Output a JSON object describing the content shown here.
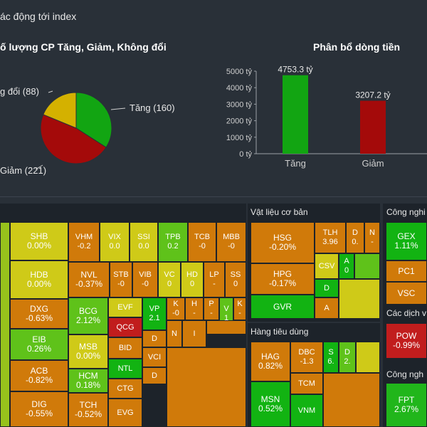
{
  "header": {
    "title": "ác động tới index"
  },
  "pie": {
    "title": "ố lượng CP Tăng, Giảm, Không đổi",
    "labels": {
      "up": "Tăng (160)",
      "down": "Giảm (221)",
      "flat": "g đổi (88)"
    },
    "colors": {
      "up": "#12a512",
      "down": "#a40a0a",
      "flat": "#d4b100"
    }
  },
  "flow": {
    "title": "Phân bổ dòng tiền",
    "ticks": [
      "5000 tỷ",
      "4000 tỷ",
      "3000 tỷ",
      "2000 tỷ",
      "1000 tỷ",
      "0 tỷ"
    ]
  },
  "chart_data": [
    {
      "type": "pie",
      "title": "ố lượng CP Tăng, Giảm, Không đổi",
      "categories": [
        "Tăng",
        "Giảm",
        "Không đổi"
      ],
      "values": [
        160,
        221,
        88
      ]
    },
    {
      "type": "bar",
      "title": "Phân bổ dòng tiền",
      "categories": [
        "Tăng",
        "Giảm"
      ],
      "values": [
        4753.3,
        3207.2
      ],
      "value_labels": [
        "4753.3 tỷ",
        "3207.2 tỷ"
      ],
      "ylim": [
        0,
        5000
      ],
      "colors": [
        "#12a512",
        "#a40a0a"
      ]
    }
  ],
  "treemap": {
    "sections": {
      "vatlieu": "Vật liệu cơ bản",
      "tieudung": "Hàng tiêu dùng",
      "congnghiep": "Công nghi",
      "dichvu": "Các dịch v",
      "congnghe": "Công ngh"
    },
    "cells": [
      {
        "code": "SHB",
        "pct": "0.00%"
      },
      {
        "code": "HDB",
        "pct": "0.00%"
      },
      {
        "code": "DXG",
        "pct": "-0.63%"
      },
      {
        "code": "EIB",
        "pct": "0.26%"
      },
      {
        "code": "ACB",
        "pct": "-0.82%"
      },
      {
        "code": "DIG",
        "pct": "-0.55%"
      },
      {
        "code": "VHM",
        "pct": "-0.2"
      },
      {
        "code": "VIX",
        "pct": "0.0"
      },
      {
        "code": "SSI",
        "pct": "0.0"
      },
      {
        "code": "TPB",
        "pct": "0.2"
      },
      {
        "code": "TCB",
        "pct": "-0"
      },
      {
        "code": "MBB",
        "pct": "-0"
      },
      {
        "code": "NVL",
        "pct": "-0.37%"
      },
      {
        "code": "STB",
        "pct": "-0"
      },
      {
        "code": "VIB",
        "pct": "-0"
      },
      {
        "code": "VC",
        "pct": "0"
      },
      {
        "code": "HD",
        "pct": "0"
      },
      {
        "code": "LP",
        "pct": "-"
      },
      {
        "code": "SS",
        "pct": "0"
      },
      {
        "code": "BCG",
        "pct": "2.12%"
      },
      {
        "code": "EVF",
        "pct": ""
      },
      {
        "code": "VP",
        "pct": "2.1"
      },
      {
        "code": "K",
        "pct": "-0"
      },
      {
        "code": "H",
        "pct": "-"
      },
      {
        "code": "P",
        "pct": "-"
      },
      {
        "code": "V",
        "pct": "1"
      },
      {
        "code": "K",
        "pct": "-"
      },
      {
        "code": "QCG",
        "pct": ""
      },
      {
        "code": "D",
        "pct": ""
      },
      {
        "code": "N",
        "pct": ""
      },
      {
        "code": "I",
        "pct": ""
      },
      {
        "code": "MSB",
        "pct": "0.00%"
      },
      {
        "code": "BID",
        "pct": ""
      },
      {
        "code": "VCI",
        "pct": ""
      },
      {
        "code": "HCM",
        "pct": "0.18%"
      },
      {
        "code": "NTL",
        "pct": ""
      },
      {
        "code": "D",
        "pct": ""
      },
      {
        "code": "CTG",
        "pct": ""
      },
      {
        "code": "TCH",
        "pct": "-0.52%"
      },
      {
        "code": "EVG",
        "pct": ""
      },
      {
        "code": "HSG",
        "pct": "-0.20%"
      },
      {
        "code": "TLH",
        "pct": "3.96"
      },
      {
        "code": "D",
        "pct": "0."
      },
      {
        "code": "N",
        "pct": "-"
      },
      {
        "code": "HPG",
        "pct": "-0.17%"
      },
      {
        "code": "CSV",
        "pct": ""
      },
      {
        "code": "A",
        "pct": "0"
      },
      {
        "code": "GVR",
        "pct": ""
      },
      {
        "code": "D",
        "pct": ""
      },
      {
        "code": "A",
        "pct": ""
      },
      {
        "code": "HAG",
        "pct": "0.82%"
      },
      {
        "code": "DBC",
        "pct": "-1.3"
      },
      {
        "code": "S",
        "pct": "6."
      },
      {
        "code": "D",
        "pct": "2."
      },
      {
        "code": "TCM",
        "pct": ""
      },
      {
        "code": "MSN",
        "pct": "0.52%"
      },
      {
        "code": "VNM",
        "pct": ""
      },
      {
        "code": "GEX",
        "pct": "1.11%"
      },
      {
        "code": "PC1",
        "pct": ""
      },
      {
        "code": "VSC",
        "pct": ""
      },
      {
        "code": "POW",
        "pct": "-0.99%"
      },
      {
        "code": "FPT",
        "pct": "2.67%"
      },
      {
        "code": "0",
        "pct": ""
      }
    ]
  }
}
